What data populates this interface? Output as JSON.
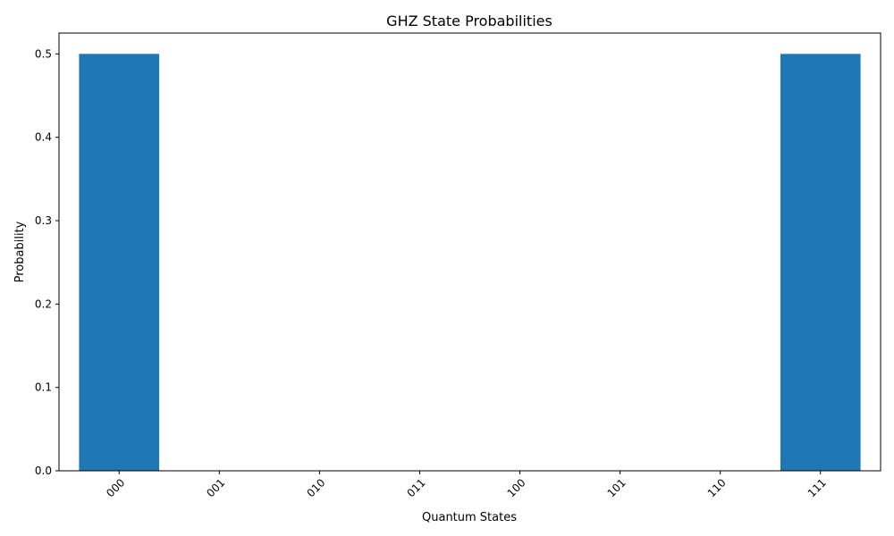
{
  "chart_data": {
    "type": "bar",
    "title": "GHZ State Probabilities",
    "xlabel": "Quantum States",
    "ylabel": "Probability",
    "categories": [
      "000",
      "001",
      "010",
      "011",
      "100",
      "101",
      "110",
      "111"
    ],
    "values": [
      0.5,
      0,
      0,
      0,
      0,
      0,
      0,
      0.5
    ],
    "yticks": [
      "0.0",
      "0.1",
      "0.2",
      "0.3",
      "0.4",
      "0.5"
    ],
    "ytick_values": [
      0,
      0.1,
      0.2,
      0.3,
      0.4,
      0.5
    ],
    "ylim": [
      0,
      0.525
    ],
    "xtick_rotation_deg": 45,
    "bar_color": "#1f77b4",
    "grid": false,
    "legend": "none"
  }
}
